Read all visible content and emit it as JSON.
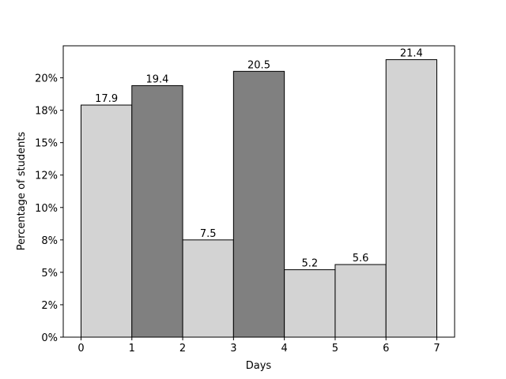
{
  "chart_data": {
    "type": "histogram",
    "xlabel": "Days",
    "ylabel": "Percentage of students",
    "bins": [
      0,
      1,
      2,
      3,
      4,
      5,
      6,
      7
    ],
    "values": [
      17.9,
      19.4,
      7.5,
      20.5,
      5.2,
      5.6,
      21.4
    ],
    "colors": [
      "#d3d3d3",
      "#808080",
      "#d3d3d3",
      "#808080",
      "#d3d3d3",
      "#d3d3d3",
      "#d3d3d3"
    ],
    "edgecolor": "#000000",
    "xlim": [
      -0.35,
      7.35
    ],
    "xticks": [
      0,
      1,
      2,
      3,
      4,
      5,
      6,
      7
    ],
    "ylim": [
      0,
      22.47
    ],
    "yticks": [
      {
        "value": 0,
        "label": "0%"
      },
      {
        "value": 2.5,
        "label": "2%"
      },
      {
        "value": 5,
        "label": "5%"
      },
      {
        "value": 7.5,
        "label": "8%"
      },
      {
        "value": 10,
        "label": "10%"
      },
      {
        "value": 12.5,
        "label": "12%"
      },
      {
        "value": 15,
        "label": "15%"
      },
      {
        "value": 17.5,
        "label": "18%"
      },
      {
        "value": 20,
        "label": "20%"
      }
    ],
    "grid": false
  }
}
